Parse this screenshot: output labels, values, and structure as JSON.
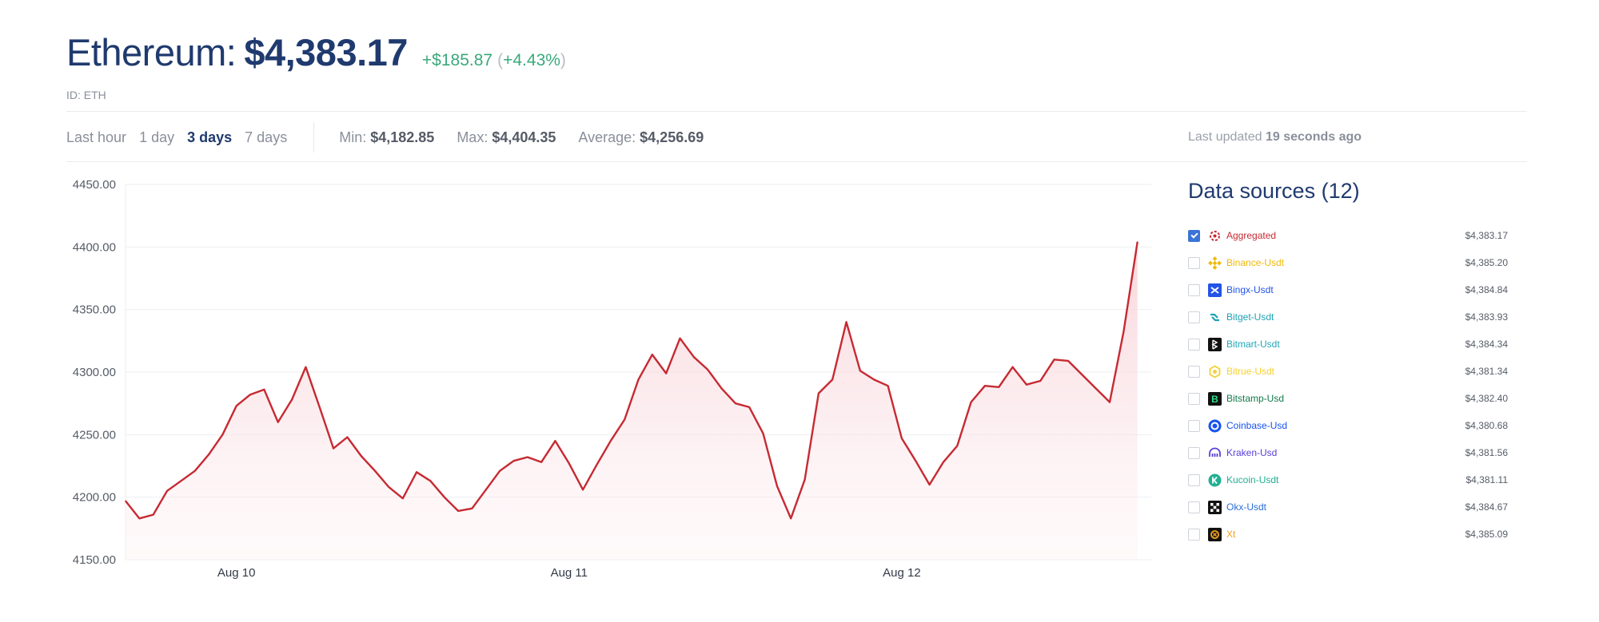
{
  "header": {
    "name": "Ethereum:",
    "price": "$4,383.17",
    "change": "+$185.87",
    "pct_open": "(",
    "pct": "+4.43%",
    "pct_close": ")",
    "id_label": "ID: ETH"
  },
  "toolbar": {
    "ranges": [
      {
        "label": "Last hour",
        "active": false
      },
      {
        "label": "1 day",
        "active": false
      },
      {
        "label": "3 days",
        "active": true
      },
      {
        "label": "7 days",
        "active": false
      }
    ],
    "min_label": "Min:",
    "min_value": "$4,182.85",
    "max_label": "Max:",
    "max_value": "$4,404.35",
    "avg_label": "Average:",
    "avg_value": "$4,256.69",
    "updated_prefix": "Last updated",
    "updated_value": "19 seconds ago"
  },
  "chart_data": {
    "type": "area",
    "title": "",
    "xlabel": "",
    "ylabel": "",
    "ylim": [
      4150,
      4450
    ],
    "yticks": [
      4450,
      4400,
      4350,
      4300,
      4250,
      4200,
      4150
    ],
    "ytick_labels": [
      "4450.00",
      "4400.00",
      "4350.00",
      "4300.00",
      "4250.00",
      "4200.00",
      "4150.00"
    ],
    "xlim": [
      0,
      74
    ],
    "xticks": [
      8,
      32,
      56
    ],
    "xtick_labels": [
      "Aug 10",
      "Aug 11",
      "Aug 12"
    ],
    "grid": true,
    "line_color": "#c62a32",
    "series": [
      {
        "values": [
          4197,
          4183,
          4186,
          4205,
          4213,
          4221,
          4234,
          4250,
          4273,
          4282,
          4286,
          4260,
          4278,
          4304,
          4272,
          4239,
          4248,
          4233,
          4221,
          4208,
          4199,
          4220,
          4213,
          4200,
          4189,
          4191,
          4206,
          4221,
          4229,
          4232,
          4228,
          4245,
          4227,
          4206,
          4226,
          4245,
          4262,
          4294,
          4314,
          4299,
          4327,
          4312,
          4302,
          4287,
          4275,
          4272,
          4251,
          4209,
          4183,
          4214,
          4283,
          4294,
          4340,
          4301,
          4294,
          4289,
          4247,
          4229,
          4210,
          4228,
          4241,
          4276,
          4289,
          4288,
          4304,
          4290,
          4293,
          4310,
          4309,
          4298,
          4287,
          4276,
          4332,
          4404
        ]
      }
    ]
  },
  "sources": {
    "title": "Data sources (12)",
    "items": [
      {
        "name": "Aggregated",
        "price": "$4,383.17",
        "checked": true,
        "color": "#c62a32",
        "icon": "aggregated-icon"
      },
      {
        "name": "Binance-Usdt",
        "price": "$4,385.20",
        "checked": false,
        "color": "#f0b90b",
        "icon": "binance-icon"
      },
      {
        "name": "Bingx-Usdt",
        "price": "$4,384.84",
        "checked": false,
        "color": "#2354e6",
        "icon": "bingx-icon"
      },
      {
        "name": "Bitget-Usdt",
        "price": "$4,383.93",
        "checked": false,
        "color": "#1da2b4",
        "icon": "bitget-icon"
      },
      {
        "name": "Bitmart-Usdt",
        "price": "$4,384.34",
        "checked": false,
        "color": "#22a7b5",
        "icon": "bitmart-icon"
      },
      {
        "name": "Bitrue-Usdt",
        "price": "$4,381.34",
        "checked": false,
        "color": "#f5d033",
        "icon": "bitrue-icon"
      },
      {
        "name": "Bitstamp-Usd",
        "price": "$4,382.40",
        "checked": false,
        "color": "#0e7a4a",
        "icon": "bitstamp-icon"
      },
      {
        "name": "Coinbase-Usd",
        "price": "$4,380.68",
        "checked": false,
        "color": "#1652f0",
        "icon": "coinbase-icon"
      },
      {
        "name": "Kraken-Usd",
        "price": "$4,381.56",
        "checked": false,
        "color": "#5741d9",
        "icon": "kraken-icon"
      },
      {
        "name": "Kucoin-Usdt",
        "price": "$4,381.11",
        "checked": false,
        "color": "#23af91",
        "icon": "kucoin-icon"
      },
      {
        "name": "Okx-Usdt",
        "price": "$4,384.67",
        "checked": false,
        "color": "#2b6fd6",
        "icon": "okx-icon"
      },
      {
        "name": "Xt",
        "price": "$4,385.09",
        "checked": false,
        "color": "#f0a020",
        "icon": "xt-icon"
      }
    ]
  }
}
